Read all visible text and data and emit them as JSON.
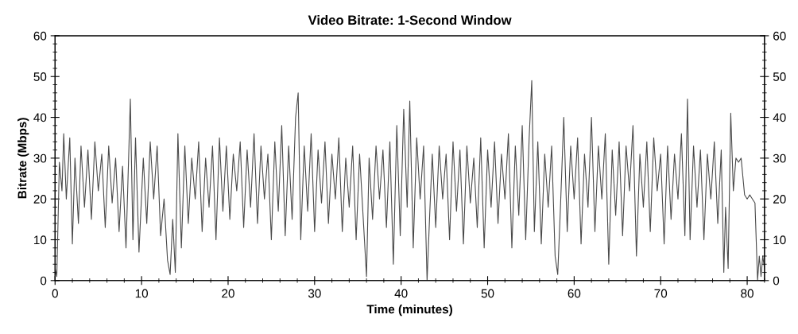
{
  "chart_data": {
    "type": "line",
    "title": "Video Bitrate: 1-Second Window",
    "xlabel": "Time (minutes)",
    "ylabel": "Bitrate (Mbps)",
    "xlim": [
      0,
      82
    ],
    "xticks": [
      0,
      10,
      20,
      30,
      40,
      50,
      60,
      70,
      80
    ],
    "ylim": [
      0,
      60
    ],
    "yticks": [
      0,
      10,
      20,
      30,
      40,
      50,
      60
    ],
    "y2lim": [
      0,
      60
    ],
    "y2ticks": [
      0,
      10,
      20,
      30,
      40,
      50,
      60
    ],
    "grid": false,
    "marker": "none",
    "line_style": "solid",
    "series": [
      {
        "color": "#4a4a4a",
        "x": [
          0,
          0.2,
          0.5,
          0.8,
          1.0,
          1.3,
          1.7,
          2.0,
          2.3,
          2.7,
          3.0,
          3.4,
          3.8,
          4.2,
          4.6,
          5.0,
          5.4,
          5.8,
          6.2,
          6.6,
          7.0,
          7.4,
          7.8,
          8.2,
          8.7,
          9.0,
          9.3,
          9.7,
          10.2,
          10.6,
          11.0,
          11.4,
          11.8,
          12.2,
          12.6,
          13.0,
          13.3,
          13.6,
          13.9,
          14.2,
          14.6,
          15.0,
          15.4,
          15.8,
          16.2,
          16.6,
          17.0,
          17.4,
          17.8,
          18.2,
          18.6,
          19.0,
          19.4,
          19.8,
          20.2,
          20.6,
          21.0,
          21.4,
          21.8,
          22.2,
          22.6,
          23.0,
          23.4,
          23.8,
          24.2,
          24.6,
          25.0,
          25.4,
          25.8,
          26.2,
          26.6,
          27.0,
          27.4,
          27.8,
          28.1,
          28.4,
          28.8,
          29.2,
          29.6,
          30.0,
          30.4,
          30.8,
          31.2,
          31.6,
          32.0,
          32.4,
          32.8,
          33.2,
          33.6,
          34.0,
          34.4,
          34.8,
          35.2,
          35.6,
          36.0,
          36.3,
          36.7,
          37.1,
          37.5,
          37.9,
          38.3,
          38.7,
          39.1,
          39.5,
          39.9,
          40.3,
          40.7,
          41.0,
          41.4,
          41.8,
          42.2,
          42.6,
          43.0,
          43.3,
          43.6,
          44.0,
          44.4,
          44.8,
          45.2,
          45.6,
          46.0,
          46.4,
          46.8,
          47.2,
          47.6,
          48.0,
          48.4,
          48.8,
          49.2,
          49.6,
          50.0,
          50.4,
          50.8,
          51.2,
          51.6,
          52.0,
          52.4,
          52.8,
          53.2,
          53.6,
          54.0,
          54.4,
          54.8,
          55.1,
          55.4,
          55.8,
          56.2,
          56.6,
          57.0,
          57.4,
          57.8,
          58.1,
          58.4,
          58.8,
          59.2,
          59.6,
          60.0,
          60.4,
          60.8,
          61.2,
          61.6,
          62.0,
          62.4,
          62.8,
          63.2,
          63.6,
          64.0,
          64.4,
          64.8,
          65.2,
          65.6,
          66.0,
          66.4,
          66.8,
          67.2,
          67.6,
          68.0,
          68.4,
          68.8,
          69.2,
          69.6,
          70.0,
          70.4,
          70.8,
          71.2,
          71.6,
          72.0,
          72.4,
          72.8,
          73.1,
          73.4,
          73.8,
          74.2,
          74.6,
          75.0,
          75.4,
          75.8,
          76.2,
          76.6,
          77.0,
          77.3,
          77.5,
          77.8,
          78.1,
          78.4,
          78.7,
          79.0,
          79.3,
          79.7,
          80.0,
          80.3,
          80.6,
          80.9,
          81.2,
          81.4,
          81.6,
          81.8,
          82.0
        ],
        "values": [
          3,
          1,
          29,
          22,
          36,
          20,
          35,
          9,
          30,
          14,
          33,
          18,
          32,
          15,
          34,
          22,
          31,
          13,
          33,
          19,
          30,
          12,
          28,
          8,
          44.5,
          10,
          35,
          7,
          30,
          14,
          34,
          20,
          33,
          11,
          20,
          5,
          1.5,
          15,
          2,
          36,
          8,
          33,
          14,
          30,
          20,
          34,
          12,
          30,
          18,
          33,
          10,
          35,
          17,
          33,
          15,
          31,
          22,
          34,
          13,
          32,
          18,
          36,
          14,
          33,
          20,
          31,
          10,
          34,
          17,
          38,
          11,
          33,
          15,
          40,
          46,
          10,
          33,
          17,
          36,
          12,
          32,
          19,
          34,
          14,
          31,
          20,
          35,
          12,
          30,
          18,
          33,
          10,
          31,
          16,
          1,
          30,
          15,
          33,
          20,
          32,
          13,
          34,
          4,
          38,
          11,
          42,
          18,
          44,
          8,
          35,
          20,
          33,
          0,
          16,
          31,
          13,
          33,
          20,
          31,
          10,
          34,
          17,
          32,
          9,
          33,
          19,
          30,
          13,
          35,
          8,
          32,
          18,
          34,
          14,
          31,
          20,
          36,
          8,
          33,
          16,
          38,
          10,
          35,
          49,
          12,
          34,
          9,
          31,
          18,
          33,
          6,
          1.5,
          17,
          40,
          12,
          33,
          20,
          35,
          9,
          31,
          18,
          40,
          12,
          33,
          20,
          36,
          4,
          32,
          16,
          34,
          11,
          33,
          22,
          38,
          6,
          31,
          18,
          34,
          12,
          35,
          22,
          31,
          9,
          33,
          15,
          31,
          20,
          36,
          11,
          44.5,
          10,
          33,
          18,
          32,
          10,
          31,
          20,
          34,
          14,
          32,
          2,
          18,
          3,
          41,
          22,
          30,
          29,
          30,
          21,
          20,
          21,
          20,
          19,
          0,
          6,
          1,
          6,
          3
        ]
      }
    ]
  }
}
